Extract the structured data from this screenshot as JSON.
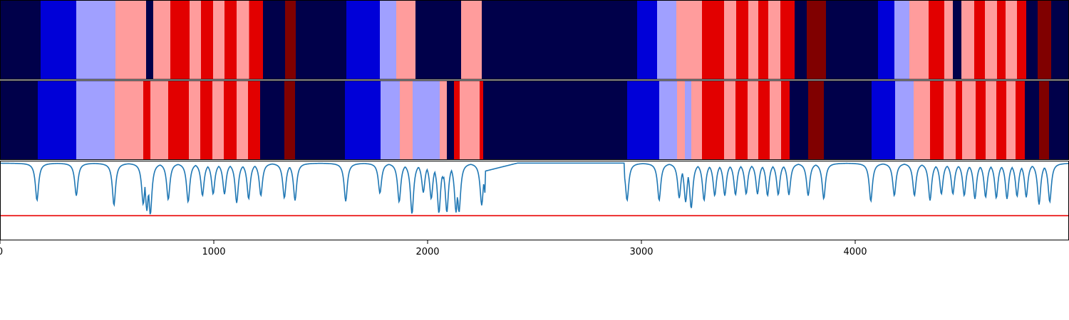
{
  "chart_data": [
    {
      "type": "heatmap",
      "panel": "top-band",
      "palette": {
        "dark-navy": "#00004a",
        "blue": "#0000d8",
        "light-blue": "#a0a0ff",
        "pink": "#ff9c9c",
        "red": "#e20000",
        "dark-red": "#800000"
      },
      "segments": [
        [
          0,
          190,
          "dark-navy"
        ],
        [
          190,
          357,
          "blue"
        ],
        [
          357,
          540,
          "light-blue"
        ],
        [
          540,
          683,
          "pink"
        ],
        [
          683,
          717,
          "dark-navy"
        ],
        [
          717,
          797,
          "pink"
        ],
        [
          797,
          887,
          "red"
        ],
        [
          887,
          940,
          "pink"
        ],
        [
          940,
          997,
          "red"
        ],
        [
          997,
          1050,
          "pink"
        ],
        [
          1050,
          1107,
          "red"
        ],
        [
          1107,
          1165,
          "pink"
        ],
        [
          1165,
          1230,
          "red"
        ],
        [
          1230,
          1333,
          "dark-navy"
        ],
        [
          1333,
          1383,
          "dark-red"
        ],
        [
          1383,
          1620,
          "dark-navy"
        ],
        [
          1620,
          1777,
          "blue"
        ],
        [
          1777,
          1853,
          "light-blue"
        ],
        [
          1853,
          1943,
          "pink"
        ],
        [
          1943,
          2157,
          "dark-navy"
        ],
        [
          2157,
          2253,
          "pink"
        ],
        [
          2253,
          2980,
          "dark-navy"
        ],
        [
          2980,
          3073,
          "blue"
        ],
        [
          3073,
          3163,
          "light-blue"
        ],
        [
          3163,
          3283,
          "pink"
        ],
        [
          3283,
          3387,
          "red"
        ],
        [
          3387,
          3443,
          "pink"
        ],
        [
          3443,
          3500,
          "red"
        ],
        [
          3500,
          3547,
          "pink"
        ],
        [
          3547,
          3593,
          "red"
        ],
        [
          3593,
          3650,
          "pink"
        ],
        [
          3650,
          3717,
          "red"
        ],
        [
          3717,
          3773,
          "dark-navy"
        ],
        [
          3773,
          3863,
          "dark-red"
        ],
        [
          3863,
          4107,
          "dark-navy"
        ],
        [
          4107,
          4183,
          "blue"
        ],
        [
          4183,
          4253,
          "light-blue"
        ],
        [
          4253,
          4343,
          "pink"
        ],
        [
          4343,
          4417,
          "red"
        ],
        [
          4417,
          4457,
          "pink"
        ],
        [
          4457,
          4497,
          "dark-navy"
        ],
        [
          4497,
          4557,
          "pink"
        ],
        [
          4557,
          4607,
          "red"
        ],
        [
          4607,
          4663,
          "pink"
        ],
        [
          4663,
          4703,
          "red"
        ],
        [
          4703,
          4757,
          "pink"
        ],
        [
          4757,
          4800,
          "red"
        ],
        [
          4800,
          4853,
          "dark-navy"
        ],
        [
          4853,
          4917,
          "dark-red"
        ],
        [
          4917,
          5000,
          "dark-navy"
        ]
      ]
    },
    {
      "type": "heatmap",
      "panel": "middle-band",
      "segments": [
        [
          0,
          177,
          "dark-navy"
        ],
        [
          177,
          357,
          "blue"
        ],
        [
          357,
          537,
          "light-blue"
        ],
        [
          537,
          670,
          "pink"
        ],
        [
          670,
          703,
          "red"
        ],
        [
          703,
          787,
          "pink"
        ],
        [
          787,
          883,
          "red"
        ],
        [
          883,
          937,
          "pink"
        ],
        [
          937,
          993,
          "red"
        ],
        [
          993,
          1047,
          "pink"
        ],
        [
          1047,
          1107,
          "red"
        ],
        [
          1107,
          1160,
          "pink"
        ],
        [
          1160,
          1217,
          "red"
        ],
        [
          1217,
          1330,
          "dark-navy"
        ],
        [
          1330,
          1380,
          "dark-red"
        ],
        [
          1380,
          1613,
          "dark-navy"
        ],
        [
          1613,
          1780,
          "blue"
        ],
        [
          1780,
          1870,
          "light-blue"
        ],
        [
          1870,
          1930,
          "pink"
        ],
        [
          1930,
          2057,
          "light-blue"
        ],
        [
          2057,
          2090,
          "pink"
        ],
        [
          2090,
          2123,
          "dark-navy"
        ],
        [
          2123,
          2150,
          "red"
        ],
        [
          2150,
          2243,
          "pink"
        ],
        [
          2243,
          2260,
          "red"
        ],
        [
          2260,
          2933,
          "dark-navy"
        ],
        [
          2933,
          3083,
          "blue"
        ],
        [
          3083,
          3167,
          "light-blue"
        ],
        [
          3167,
          3203,
          "pink"
        ],
        [
          3203,
          3233,
          "light-blue"
        ],
        [
          3233,
          3283,
          "pink"
        ],
        [
          3283,
          3387,
          "red"
        ],
        [
          3387,
          3440,
          "pink"
        ],
        [
          3440,
          3497,
          "red"
        ],
        [
          3497,
          3547,
          "pink"
        ],
        [
          3547,
          3600,
          "red"
        ],
        [
          3600,
          3653,
          "pink"
        ],
        [
          3653,
          3693,
          "red"
        ],
        [
          3693,
          3780,
          "dark-navy"
        ],
        [
          3780,
          3853,
          "dark-red"
        ],
        [
          3853,
          4077,
          "dark-navy"
        ],
        [
          4077,
          4187,
          "blue"
        ],
        [
          4187,
          4273,
          "light-blue"
        ],
        [
          4273,
          4350,
          "pink"
        ],
        [
          4350,
          4413,
          "red"
        ],
        [
          4413,
          4470,
          "pink"
        ],
        [
          4470,
          4500,
          "red"
        ],
        [
          4500,
          4563,
          "pink"
        ],
        [
          4563,
          4610,
          "red"
        ],
        [
          4610,
          4660,
          "pink"
        ],
        [
          4660,
          4707,
          "red"
        ],
        [
          4707,
          4750,
          "pink"
        ],
        [
          4750,
          4793,
          "red"
        ],
        [
          4793,
          4860,
          "dark-navy"
        ],
        [
          4860,
          4907,
          "dark-red"
        ],
        [
          4907,
          5000,
          "dark-navy"
        ]
      ]
    },
    {
      "type": "line",
      "panel": "bottom-line",
      "line_color": "#1f77b4",
      "threshold_color": "#e80000",
      "xlim": [
        0,
        5000
      ],
      "ylim": [
        0,
        1
      ],
      "x_ticks": [
        "0",
        "1000",
        "2000",
        "3000",
        "4000"
      ],
      "x_tick_values": [
        0,
        1000,
        2000,
        3000,
        4000
      ],
      "threshold": 0.31,
      "baseline": 0.97,
      "flat_regions": [
        [
          2270,
          2920,
          0.97
        ]
      ],
      "dips": [
        [
          173,
          0.5
        ],
        [
          357,
          0.56
        ],
        [
          533,
          0.44
        ],
        [
          670,
          0.45
        ],
        [
          687,
          0.37
        ],
        [
          703,
          0.32
        ],
        [
          787,
          0.51
        ],
        [
          880,
          0.48
        ],
        [
          947,
          0.56
        ],
        [
          997,
          0.58
        ],
        [
          1050,
          0.58
        ],
        [
          1107,
          0.47
        ],
        [
          1163,
          0.52
        ],
        [
          1220,
          0.56
        ],
        [
          1330,
          0.53
        ],
        [
          1380,
          0.5
        ],
        [
          1617,
          0.49
        ],
        [
          1777,
          0.59
        ],
        [
          1867,
          0.48
        ],
        [
          1927,
          0.33
        ],
        [
          1980,
          0.6
        ],
        [
          2017,
          0.52
        ],
        [
          2053,
          0.34
        ],
        [
          2073,
          0.78
        ],
        [
          2090,
          0.35
        ],
        [
          2133,
          0.35
        ],
        [
          2147,
          0.35
        ],
        [
          2253,
          0.44
        ],
        [
          2270,
          0.58
        ],
        [
          2933,
          0.5
        ],
        [
          3083,
          0.5
        ],
        [
          3177,
          0.53
        ],
        [
          3207,
          0.48
        ],
        [
          3233,
          0.4
        ],
        [
          3293,
          0.5
        ],
        [
          3343,
          0.56
        ],
        [
          3390,
          0.56
        ],
        [
          3440,
          0.57
        ],
        [
          3490,
          0.58
        ],
        [
          3543,
          0.58
        ],
        [
          3590,
          0.56
        ],
        [
          3640,
          0.57
        ],
        [
          3690,
          0.57
        ],
        [
          3780,
          0.56
        ],
        [
          3853,
          0.52
        ],
        [
          4073,
          0.49
        ],
        [
          4183,
          0.56
        ],
        [
          4277,
          0.56
        ],
        [
          4350,
          0.5
        ],
        [
          4403,
          0.58
        ],
        [
          4457,
          0.58
        ],
        [
          4510,
          0.56
        ],
        [
          4560,
          0.52
        ],
        [
          4610,
          0.54
        ],
        [
          4660,
          0.53
        ],
        [
          4710,
          0.52
        ],
        [
          4757,
          0.55
        ],
        [
          4800,
          0.54
        ],
        [
          4860,
          0.45
        ],
        [
          4910,
          0.48
        ]
      ]
    }
  ]
}
